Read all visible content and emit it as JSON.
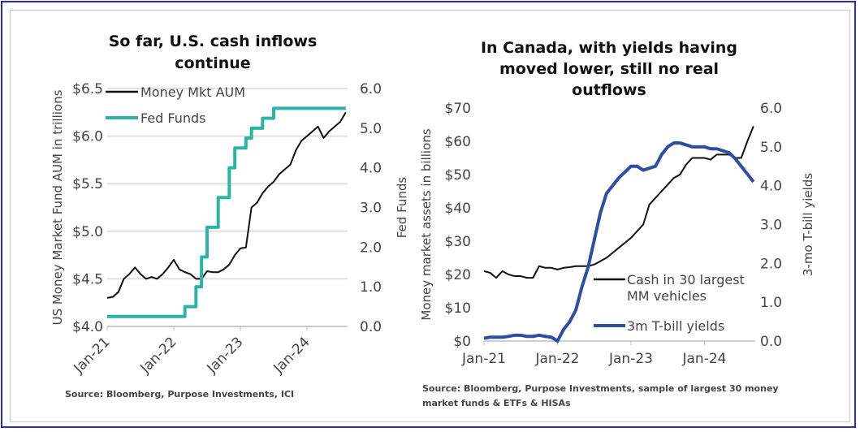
{
  "chart_data": [
    {
      "type": "line",
      "title_lines": [
        "So far, U.S. cash inflows",
        "continue"
      ],
      "ylabel": "US Money Market Fund AUM in trillions",
      "y2label": "Fed Funds",
      "ylim": [
        4.0,
        6.5
      ],
      "y2lim": [
        0.0,
        6.0
      ],
      "yticks": [
        "$4.0",
        "$4.5",
        "$5.0",
        "$5.5",
        "$6.0",
        "$6.5"
      ],
      "y2ticks": [
        "0.0",
        "1.0",
        "2.0",
        "3.0",
        "4.0",
        "5.0",
        "6.0"
      ],
      "xticks": [
        "Jan-21",
        "Jan-22",
        "Jan-23",
        "Jan-24"
      ],
      "grid": true,
      "legend": [
        "Money Mkt AUM",
        "Fed Funds"
      ],
      "legend_position": "top-left",
      "source": "Source: Bloomberg, Purpose Investments, ICI",
      "colors": {
        "aum": "#111111",
        "fed": "#2bb3a3"
      },
      "x_months_since_jan21": [
        0,
        1,
        2,
        3,
        4,
        5,
        6,
        7,
        8,
        9,
        10,
        11,
        12,
        13,
        14,
        15,
        16,
        17,
        18,
        19,
        20,
        21,
        22,
        23,
        24,
        25,
        26,
        27,
        28,
        29,
        30,
        31,
        32,
        33,
        34,
        35,
        36,
        37,
        38,
        39,
        40,
        41,
        42,
        43
      ],
      "series": [
        {
          "name": "Money Mkt AUM",
          "axis": "left",
          "values": [
            4.3,
            4.31,
            4.36,
            4.5,
            4.55,
            4.62,
            4.55,
            4.5,
            4.52,
            4.5,
            4.55,
            4.62,
            4.7,
            4.6,
            4.57,
            4.55,
            4.5,
            4.5,
            4.58,
            4.57,
            4.57,
            4.6,
            4.65,
            4.75,
            4.82,
            4.83,
            5.25,
            5.3,
            5.4,
            5.47,
            5.52,
            5.6,
            5.65,
            5.7,
            5.85,
            5.95,
            6.0,
            6.05,
            6.1,
            5.98,
            6.05,
            6.1,
            6.15,
            6.25
          ]
        },
        {
          "name": "Fed Funds",
          "axis": "right",
          "step": true,
          "values": [
            0.25,
            0.25,
            0.25,
            0.25,
            0.25,
            0.25,
            0.25,
            0.25,
            0.25,
            0.25,
            0.25,
            0.25,
            0.25,
            0.25,
            0.5,
            0.5,
            1.0,
            1.75,
            2.5,
            2.5,
            3.25,
            3.25,
            4.0,
            4.5,
            4.5,
            4.75,
            5.0,
            5.0,
            5.25,
            5.25,
            5.5,
            5.5,
            5.5,
            5.5,
            5.5,
            5.5,
            5.5,
            5.5,
            5.5,
            5.5,
            5.5,
            5.5,
            5.5,
            5.5
          ]
        }
      ]
    },
    {
      "type": "line",
      "title_lines": [
        "In Canada, with yields having",
        "moved lower, still no real",
        "outflows"
      ],
      "ylabel": "Money market assets in billions",
      "y2label": "3-mo T-bill yields",
      "ylim": [
        0,
        70
      ],
      "y2lim": [
        0.0,
        6.0
      ],
      "yticks": [
        "$0",
        "$10",
        "$20",
        "$30",
        "$40",
        "$50",
        "$60",
        "$70"
      ],
      "y2ticks": [
        "0.0",
        "1.0",
        "2.0",
        "3.0",
        "4.0",
        "5.0",
        "6.0"
      ],
      "xticks": [
        "Jan-21",
        "Jan-22",
        "Jan-23",
        "Jan-24"
      ],
      "grid": false,
      "legend": [
        "Cash in 30 largest",
        "MM vehicles",
        "3m T-bill yields"
      ],
      "legend_position": "bottom-right",
      "source_lines": [
        "Source: Bloomberg, Purpose Investments, sample of largest 30 money",
        "market funds & ETFs & HISAs"
      ],
      "colors": {
        "cash": "#111111",
        "tbill": "#2e4ea3"
      },
      "x_months_since_jan21": [
        0,
        1,
        2,
        3,
        4,
        5,
        6,
        7,
        8,
        9,
        10,
        11,
        12,
        13,
        14,
        15,
        16,
        17,
        18,
        19,
        20,
        21,
        22,
        23,
        24,
        25,
        26,
        27,
        28,
        29,
        30,
        31,
        32,
        33,
        34,
        35,
        36,
        37,
        38,
        39,
        40,
        41,
        42,
        43,
        44
      ],
      "series": [
        {
          "name": "Cash in 30 largest MM vehicles",
          "axis": "left",
          "values": [
            21,
            20.5,
            19,
            21,
            20,
            19.5,
            19.5,
            19,
            19,
            22.5,
            22,
            22,
            21.5,
            22,
            22.2,
            22.5,
            22.5,
            22.5,
            23,
            24,
            25,
            26.5,
            28,
            29.5,
            31,
            33,
            35,
            41,
            43,
            45,
            47,
            49,
            50,
            53,
            55,
            55,
            55,
            54.5,
            56,
            56,
            56,
            55,
            55,
            60,
            64.5
          ]
        },
        {
          "name": "3m T-bill yields",
          "axis": "right",
          "values": [
            0.07,
            0.1,
            0.1,
            0.1,
            0.12,
            0.15,
            0.15,
            0.12,
            0.12,
            0.15,
            0.12,
            0.1,
            0.0,
            0.3,
            0.5,
            0.8,
            1.4,
            1.9,
            2.6,
            3.3,
            3.8,
            4.0,
            4.2,
            4.35,
            4.5,
            4.5,
            4.4,
            4.45,
            4.5,
            4.8,
            5.0,
            5.1,
            5.1,
            5.05,
            5.0,
            5.0,
            5.0,
            4.95,
            4.95,
            4.9,
            4.85,
            4.7,
            4.5,
            4.3,
            4.1
          ]
        }
      ]
    }
  ]
}
